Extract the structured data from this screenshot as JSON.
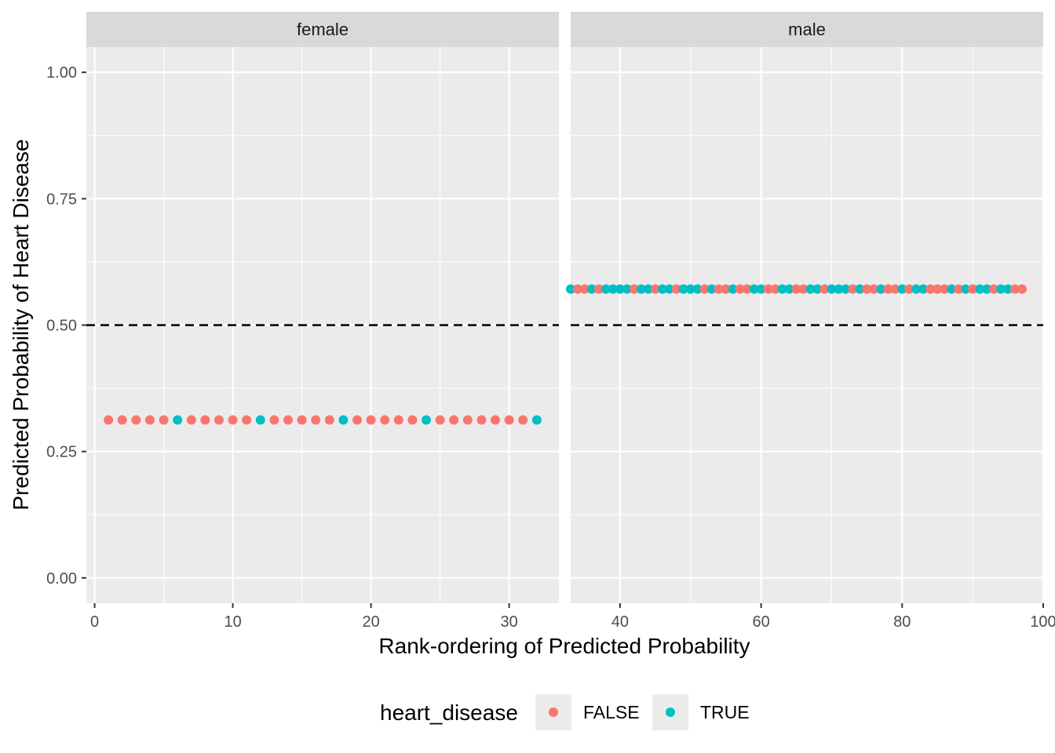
{
  "chart_data": {
    "type": "scatter",
    "xlabel": "Rank-ordering of Predicted Probability",
    "ylabel": "Predicted Probability of Heart Disease",
    "ylim": [
      -0.05,
      1.05
    ],
    "y_ticks": [
      0.0,
      0.25,
      0.5,
      0.75,
      1.0
    ],
    "y_tick_labels": [
      "0.00",
      "0.25",
      "0.50",
      "0.75",
      "1.00"
    ],
    "reference_line": {
      "y": 0.5,
      "style": "dashed",
      "color": "#000000"
    },
    "legend": {
      "title": "heart_disease",
      "position": "bottom",
      "entries": [
        {
          "label": "FALSE",
          "color": "#F8766D"
        },
        {
          "label": "TRUE",
          "color": "#00BFC4"
        }
      ]
    },
    "panels": [
      {
        "strip": "female",
        "xlim": [
          -0.6,
          33.6
        ],
        "x_ticks": [
          0,
          10,
          20,
          30
        ],
        "x_tick_labels": [
          "0",
          "10",
          "20",
          "30"
        ],
        "y_value": 0.3125,
        "points": [
          [
            1,
            false
          ],
          [
            2,
            false
          ],
          [
            3,
            false
          ],
          [
            4,
            false
          ],
          [
            5,
            false
          ],
          [
            6,
            true
          ],
          [
            7,
            false
          ],
          [
            8,
            false
          ],
          [
            9,
            false
          ],
          [
            10,
            false
          ],
          [
            11,
            false
          ],
          [
            12,
            true
          ],
          [
            13,
            false
          ],
          [
            14,
            false
          ],
          [
            15,
            false
          ],
          [
            16,
            false
          ],
          [
            17,
            false
          ],
          [
            18,
            true
          ],
          [
            19,
            false
          ],
          [
            20,
            false
          ],
          [
            21,
            false
          ],
          [
            22,
            false
          ],
          [
            23,
            false
          ],
          [
            24,
            true
          ],
          [
            25,
            false
          ],
          [
            26,
            false
          ],
          [
            27,
            false
          ],
          [
            28,
            false
          ],
          [
            29,
            false
          ],
          [
            30,
            false
          ],
          [
            31,
            false
          ],
          [
            32,
            true
          ]
        ]
      },
      {
        "strip": "male",
        "xlim": [
          33.0,
          100.0
        ],
        "x_ticks": [
          40,
          60,
          80,
          100
        ],
        "x_tick_labels": [
          "40",
          "60",
          "80",
          "100"
        ],
        "y_value": 0.5714,
        "points": [
          [
            33,
            true
          ],
          [
            34,
            false
          ],
          [
            35,
            false
          ],
          [
            36,
            true
          ],
          [
            37,
            false
          ],
          [
            38,
            true
          ],
          [
            39,
            true
          ],
          [
            40,
            true
          ],
          [
            41,
            true
          ],
          [
            42,
            false
          ],
          [
            43,
            true
          ],
          [
            44,
            true
          ],
          [
            45,
            false
          ],
          [
            46,
            true
          ],
          [
            47,
            true
          ],
          [
            48,
            false
          ],
          [
            49,
            true
          ],
          [
            50,
            true
          ],
          [
            51,
            true
          ],
          [
            52,
            false
          ],
          [
            53,
            true
          ],
          [
            54,
            false
          ],
          [
            55,
            false
          ],
          [
            56,
            true
          ],
          [
            57,
            false
          ],
          [
            58,
            false
          ],
          [
            59,
            true
          ],
          [
            60,
            true
          ],
          [
            61,
            false
          ],
          [
            62,
            false
          ],
          [
            63,
            true
          ],
          [
            64,
            true
          ],
          [
            65,
            false
          ],
          [
            66,
            false
          ],
          [
            67,
            true
          ],
          [
            68,
            true
          ],
          [
            69,
            false
          ],
          [
            70,
            true
          ],
          [
            71,
            true
          ],
          [
            72,
            true
          ],
          [
            73,
            false
          ],
          [
            74,
            true
          ],
          [
            75,
            false
          ],
          [
            76,
            false
          ],
          [
            77,
            true
          ],
          [
            78,
            false
          ],
          [
            79,
            false
          ],
          [
            80,
            true
          ],
          [
            81,
            false
          ],
          [
            82,
            true
          ],
          [
            83,
            true
          ],
          [
            84,
            false
          ],
          [
            85,
            false
          ],
          [
            86,
            false
          ],
          [
            87,
            true
          ],
          [
            88,
            false
          ],
          [
            89,
            true
          ],
          [
            90,
            false
          ],
          [
            91,
            true
          ],
          [
            92,
            true
          ],
          [
            93,
            false
          ],
          [
            94,
            true
          ],
          [
            95,
            true
          ],
          [
            96,
            false
          ],
          [
            97,
            false
          ]
        ]
      }
    ]
  }
}
